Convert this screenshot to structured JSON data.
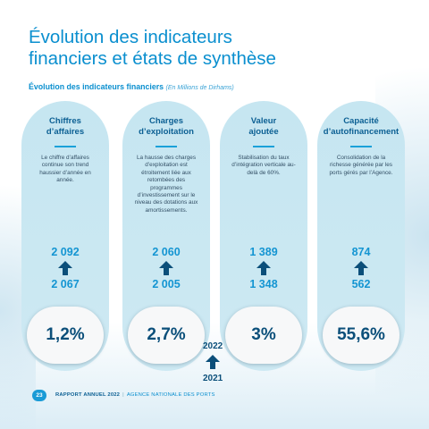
{
  "page": {
    "title": "Évolution des indicateurs financiers et états de synthèse",
    "subtitle": "Évolution des indicateurs financiers",
    "subtitle_unit": "(En Millions de Dirhams)"
  },
  "cards": [
    {
      "title": "Chiffres d’affaires",
      "description": "Le chiffre d’affaires continue son trend haussier d’année en année.",
      "value_2022": "2 092",
      "value_2021": "2 067",
      "growth": "1,2%"
    },
    {
      "title": "Charges d’exploitation",
      "description": "La hausse des charges d’exploitation est étroitement liée aux retombées des programmes d’investissement sur le niveau des dotations aux amortissements.",
      "value_2022": "2 060",
      "value_2021": "2 005",
      "growth": "2,7%"
    },
    {
      "title": "Valeur ajoutée",
      "description": "Stabilisation du taux d’intégration verticale au-delà de 60%.",
      "value_2022": "1 389",
      "value_2021": "1 348",
      "growth": "3%"
    },
    {
      "title": "Capacité d’autofinancement",
      "description": "Consolidation de la richesse générée par les ports gérés par l’Agence.",
      "value_2022": "874",
      "value_2021": "562",
      "growth": "55,6%"
    }
  ],
  "legend": {
    "year_top": "2022",
    "year_bottom": "2021",
    "icon": "arrow-up-icon"
  },
  "footer": {
    "page_number": "23",
    "report": "RAPPORT ANNUEL 2022",
    "agency": "AGENCE NATIONALE DES PORTS"
  },
  "colors": {
    "accent": "#0a8fcf",
    "card_bg": "#c6e6f1",
    "dark_blue": "#0b4f7a"
  }
}
